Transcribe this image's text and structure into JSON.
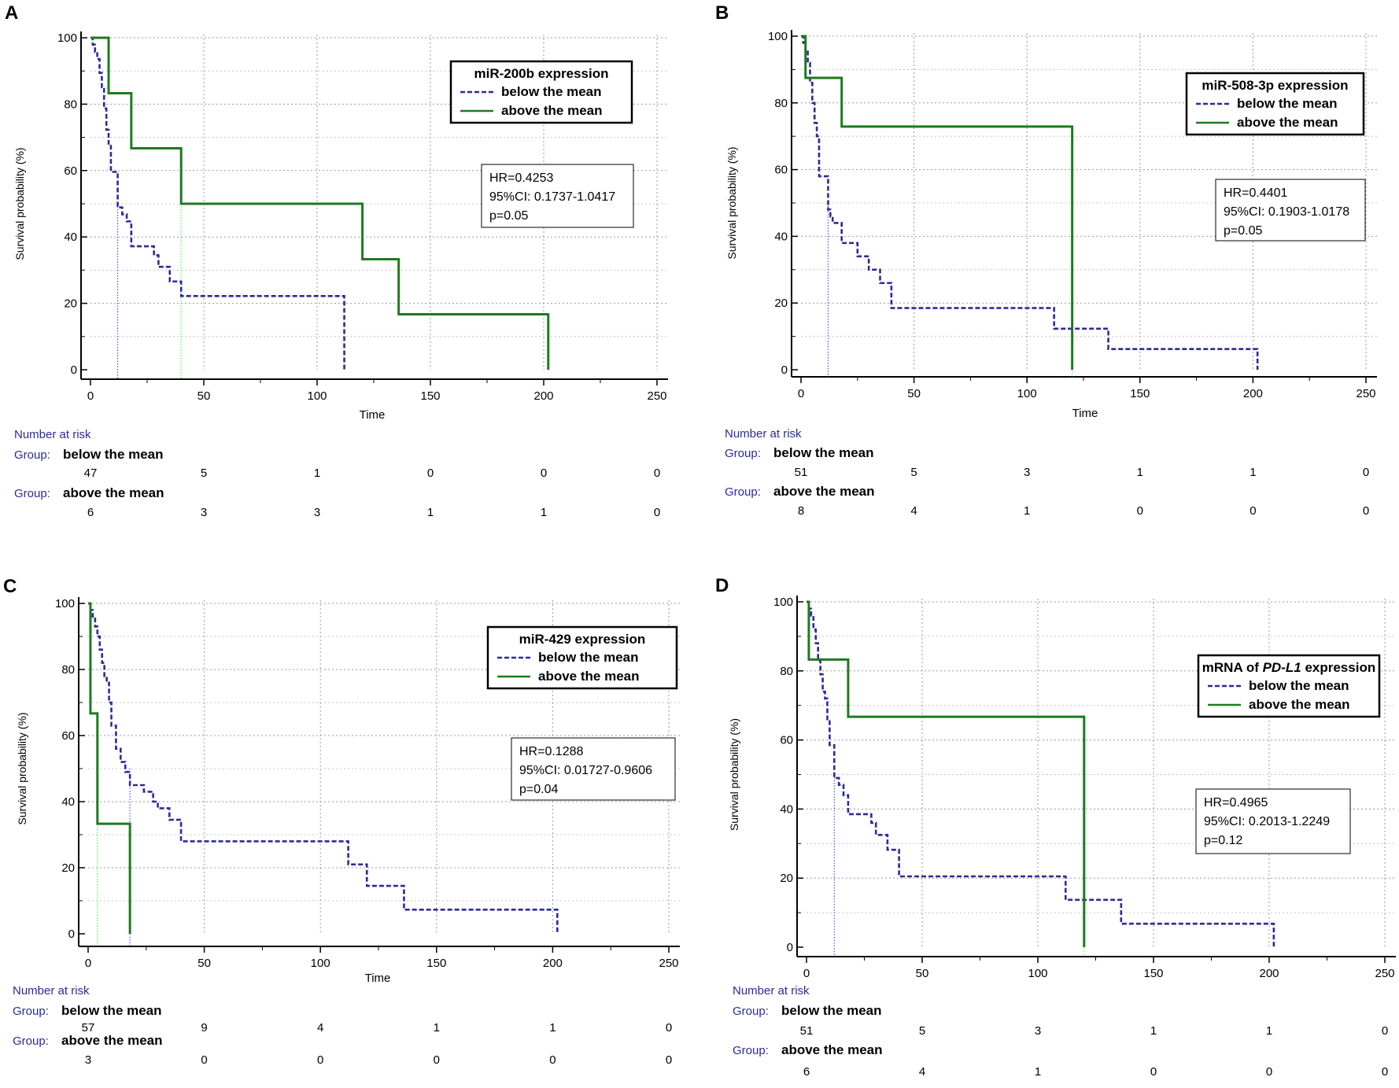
{
  "colors": {
    "below": "#2b2b9a",
    "above": "#1e7a1e",
    "grid": "#9a9a9a",
    "risk_label": "#2b2b9a",
    "median_below": "#3333ff",
    "median_above": "#33ee33"
  },
  "chart_data": [
    {
      "type": "line",
      "panel": "A",
      "xlabel": "Time",
      "ylabel": "Survival probability (%)",
      "xlim": [
        0,
        250
      ],
      "ylim": [
        0,
        100
      ],
      "xticks": [
        0,
        50,
        100,
        150,
        200,
        250
      ],
      "yticks": [
        0,
        20,
        40,
        60,
        80,
        100
      ],
      "grid": true,
      "legend": {
        "title": "miR-200b expression",
        "title_parts": [
          {
            "text": "miR-200b expression",
            "italic": false
          }
        ],
        "placement": "top-right"
      },
      "stats": {
        "placement": "middle-right",
        "lines": [
          "HR=0.4253",
          "95%CI: 0.1737-1.0417",
          "p=0.05"
        ]
      },
      "series": [
        {
          "name": "below the mean",
          "style": "dashed",
          "median": 12,
          "points": [
            [
              0,
              100
            ],
            [
              1,
              97.9
            ],
            [
              2,
              95.7
            ],
            [
              3,
              93.6
            ],
            [
              4,
              89.4
            ],
            [
              5,
              85.1
            ],
            [
              6,
              78.7
            ],
            [
              7,
              72.3
            ],
            [
              8,
              68.1
            ],
            [
              9,
              59.6
            ],
            [
              12,
              48.9
            ],
            [
              14,
              46.8
            ],
            [
              16,
              44.7
            ],
            [
              18,
              37.2
            ],
            [
              28,
              34.5
            ],
            [
              30,
              31.0
            ],
            [
              35,
              26.6
            ],
            [
              40,
              22.2
            ],
            [
              112,
              22.2
            ],
            [
              112,
              0
            ]
          ]
        },
        {
          "name": "above the mean",
          "style": "solid",
          "median": 40,
          "points": [
            [
              0,
              100
            ],
            [
              8,
              100
            ],
            [
              8,
              83.3
            ],
            [
              18,
              83.3
            ],
            [
              18,
              66.7
            ],
            [
              40,
              66.7
            ],
            [
              40,
              50
            ],
            [
              120,
              50
            ],
            [
              120,
              33.3
            ],
            [
              136,
              33.3
            ],
            [
              136,
              16.7
            ],
            [
              202,
              16.7
            ],
            [
              202,
              0
            ]
          ]
        }
      ],
      "risk_table": {
        "title": "Number at risk",
        "group_label": "Group:",
        "times": [
          0,
          50,
          100,
          150,
          200,
          250
        ],
        "groups": [
          {
            "name": "below the mean",
            "counts": [
              "47",
              "5",
              "1",
              "0",
              "0",
              "0"
            ]
          },
          {
            "name": "above the mean",
            "counts": [
              "6",
              "3",
              "3",
              "1",
              "1",
              "0"
            ]
          }
        ]
      }
    },
    {
      "type": "line",
      "panel": "B",
      "xlabel": "Time",
      "ylabel": "Survival probability (%)",
      "xlim": [
        0,
        250
      ],
      "ylim": [
        0,
        100
      ],
      "xticks": [
        0,
        50,
        100,
        150,
        200,
        250
      ],
      "yticks": [
        0,
        20,
        40,
        60,
        80,
        100
      ],
      "grid": true,
      "legend": {
        "title": "miR-508-3p expression",
        "title_parts": [
          {
            "text": "miR-508-3p expression",
            "italic": false
          }
        ],
        "placement": "top-right"
      },
      "stats": {
        "placement": "middle-right",
        "lines": [
          "HR=0.4401",
          "95%CI: 0.1903-1.0178",
          "p=0.05"
        ]
      },
      "series": [
        {
          "name": "below the mean",
          "style": "dashed",
          "median": 12,
          "points": [
            [
              0,
              100
            ],
            [
              1,
              98
            ],
            [
              2,
              96
            ],
            [
              3,
              92
            ],
            [
              4,
              86
            ],
            [
              5,
              80
            ],
            [
              6,
              74
            ],
            [
              7,
              70
            ],
            [
              8,
              58
            ],
            [
              12,
              48
            ],
            [
              13,
              46
            ],
            [
              14,
              44
            ],
            [
              18,
              38
            ],
            [
              25,
              34
            ],
            [
              30,
              30
            ],
            [
              35,
              26
            ],
            [
              40,
              18.5
            ],
            [
              112,
              18.5
            ],
            [
              112,
              12.3
            ],
            [
              136,
              12.3
            ],
            [
              136,
              6.2
            ],
            [
              202,
              6.2
            ],
            [
              202,
              0
            ]
          ]
        },
        {
          "name": "above the mean",
          "style": "solid",
          "median": 120,
          "points": [
            [
              0,
              100
            ],
            [
              2,
              100
            ],
            [
              2,
              87.5
            ],
            [
              18,
              87.5
            ],
            [
              18,
              72.9
            ],
            [
              120,
              72.9
            ],
            [
              120,
              0
            ]
          ]
        }
      ],
      "risk_table": {
        "title": "Number at risk",
        "group_label": "Group:",
        "times": [
          0,
          50,
          100,
          150,
          200,
          250
        ],
        "groups": [
          {
            "name": "below the mean",
            "counts": [
              "51",
              "5",
              "3",
              "1",
              "1",
              "0"
            ]
          },
          {
            "name": "above the mean",
            "counts": [
              "8",
              "4",
              "1",
              "0",
              "0",
              "0"
            ]
          }
        ]
      }
    },
    {
      "type": "line",
      "panel": "C",
      "xlabel": "Time",
      "ylabel": "Survival probability (%)",
      "xlim": [
        0,
        250
      ],
      "ylim": [
        0,
        100
      ],
      "xticks": [
        0,
        50,
        100,
        150,
        200,
        250
      ],
      "yticks": [
        0,
        20,
        40,
        60,
        80,
        100
      ],
      "grid": true,
      "legend": {
        "title": "miR-429 expression",
        "title_parts": [
          {
            "text": "miR-429 expression",
            "italic": false
          }
        ],
        "placement": "top-right"
      },
      "stats": {
        "placement": "middle-right",
        "lines": [
          "HR=0.1288",
          "95%CI: 0.01727-0.9606",
          "p=0.04"
        ]
      },
      "series": [
        {
          "name": "below the mean",
          "style": "dashed",
          "median": 18,
          "points": [
            [
              0,
              100
            ],
            [
              1,
              98
            ],
            [
              2,
              96
            ],
            [
              3,
              93
            ],
            [
              4,
              90
            ],
            [
              5,
              86
            ],
            [
              6,
              82
            ],
            [
              7,
              78
            ],
            [
              8,
              76
            ],
            [
              9,
              70
            ],
            [
              10,
              63
            ],
            [
              12,
              56
            ],
            [
              14,
              52
            ],
            [
              16,
              49
            ],
            [
              18,
              45
            ],
            [
              24,
              43
            ],
            [
              28,
              40
            ],
            [
              30,
              38
            ],
            [
              35,
              34.5
            ],
            [
              40,
              28
            ],
            [
              112,
              28
            ],
            [
              112,
              21
            ],
            [
              120,
              21
            ],
            [
              120,
              14.5
            ],
            [
              136,
              14.5
            ],
            [
              136,
              7.3
            ],
            [
              202,
              7.3
            ],
            [
              202,
              0
            ]
          ]
        },
        {
          "name": "above the mean",
          "style": "solid",
          "median": 4,
          "points": [
            [
              0,
              100
            ],
            [
              1,
              100
            ],
            [
              1,
              66.7
            ],
            [
              4,
              66.7
            ],
            [
              4,
              33.3
            ],
            [
              18,
              33.3
            ],
            [
              18,
              0
            ]
          ]
        }
      ],
      "risk_table": {
        "title": "Number at risk",
        "group_label": "Group:",
        "times": [
          0,
          50,
          100,
          150,
          200,
          250
        ],
        "groups": [
          {
            "name": "below the mean",
            "counts": [
              "57",
              "9",
              "4",
              "1",
              "1",
              "0"
            ]
          },
          {
            "name": "above the mean",
            "counts": [
              "3",
              "0",
              "0",
              "0",
              "0",
              "0"
            ]
          }
        ]
      }
    },
    {
      "type": "line",
      "panel": "D",
      "xlabel": "",
      "ylabel": "Survival probability (%)",
      "xlim": [
        0,
        250
      ],
      "ylim": [
        0,
        100
      ],
      "xticks": [
        0,
        50,
        100,
        150,
        200,
        250
      ],
      "yticks": [
        0,
        20,
        40,
        60,
        80,
        100
      ],
      "grid": true,
      "legend": {
        "title": "mRNA of PD-L1 expression",
        "title_parts": [
          {
            "text": "mRNA of ",
            "italic": false
          },
          {
            "text": "PD-L1",
            "italic": true
          },
          {
            "text": " expression",
            "italic": false
          }
        ],
        "placement": "top-right"
      },
      "stats": {
        "placement": "middle-right",
        "lines": [
          "HR=0.4965",
          "95%CI: 0.2013-1.2249",
          "p=0.12"
        ]
      },
      "series": [
        {
          "name": "below the mean",
          "style": "dashed",
          "median": 12,
          "points": [
            [
              0,
              100
            ],
            [
              1,
              98
            ],
            [
              2,
              96
            ],
            [
              3,
              92
            ],
            [
              4,
              88
            ],
            [
              5,
              83
            ],
            [
              6,
              79
            ],
            [
              7,
              74
            ],
            [
              8,
              72
            ],
            [
              9,
              66
            ],
            [
              10,
              58.5
            ],
            [
              12,
              49
            ],
            [
              14,
              47
            ],
            [
              16,
              44
            ],
            [
              18,
              38.5
            ],
            [
              28,
              36
            ],
            [
              30,
              32.5
            ],
            [
              35,
              28.2
            ],
            [
              40,
              20.5
            ],
            [
              112,
              20.5
            ],
            [
              112,
              13.7
            ],
            [
              136,
              13.7
            ],
            [
              136,
              6.8
            ],
            [
              202,
              6.8
            ],
            [
              202,
              0
            ]
          ]
        },
        {
          "name": "above the mean",
          "style": "solid",
          "median": 120,
          "points": [
            [
              0,
              100
            ],
            [
              1,
              100
            ],
            [
              1,
              83.3
            ],
            [
              18,
              83.3
            ],
            [
              18,
              66.7
            ],
            [
              120,
              66.7
            ],
            [
              120,
              0
            ]
          ]
        }
      ],
      "risk_table": {
        "title": "Number at risk",
        "group_label": "Group:",
        "times": [
          0,
          50,
          100,
          150,
          200,
          250
        ],
        "groups": [
          {
            "name": "below the mean",
            "counts": [
              "51",
              "5",
              "3",
              "1",
              "1",
              "0"
            ]
          },
          {
            "name": "above the mean",
            "counts": [
              "6",
              "4",
              "1",
              "0",
              "0",
              "0"
            ]
          }
        ]
      }
    }
  ]
}
